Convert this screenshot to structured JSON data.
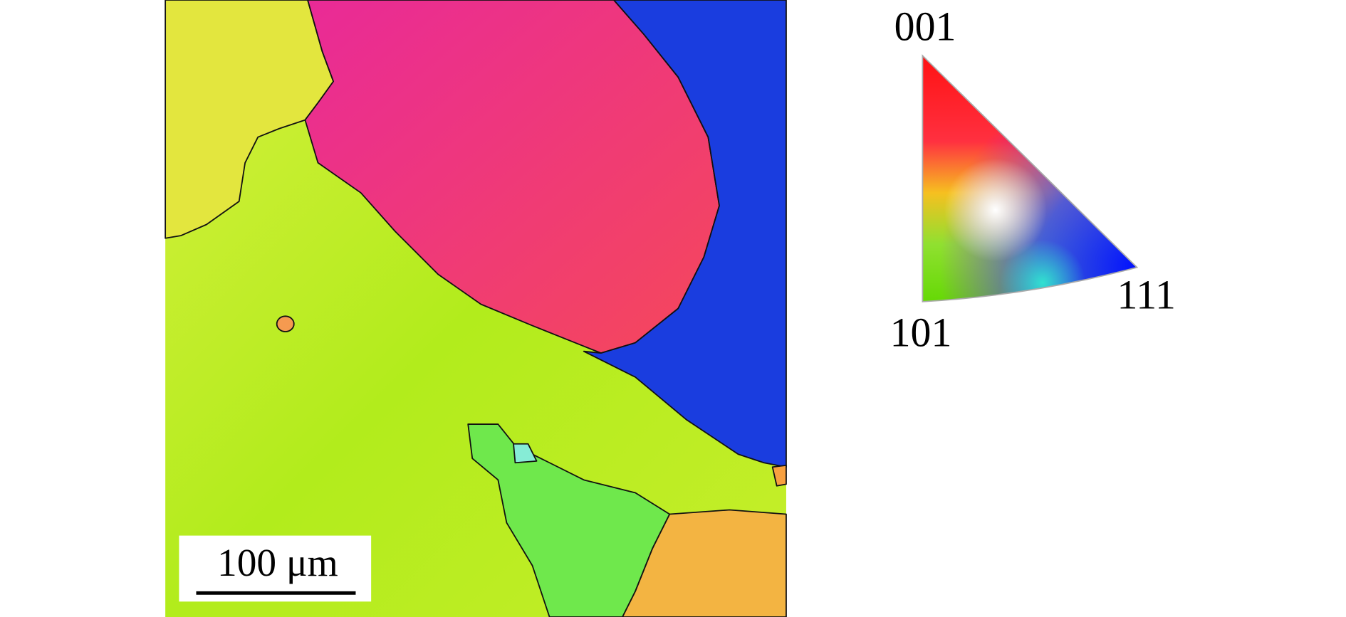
{
  "scale_bar": {
    "label": "100 μm"
  },
  "ipf_legend": {
    "labels": [
      "001",
      "101",
      "111"
    ]
  }
}
